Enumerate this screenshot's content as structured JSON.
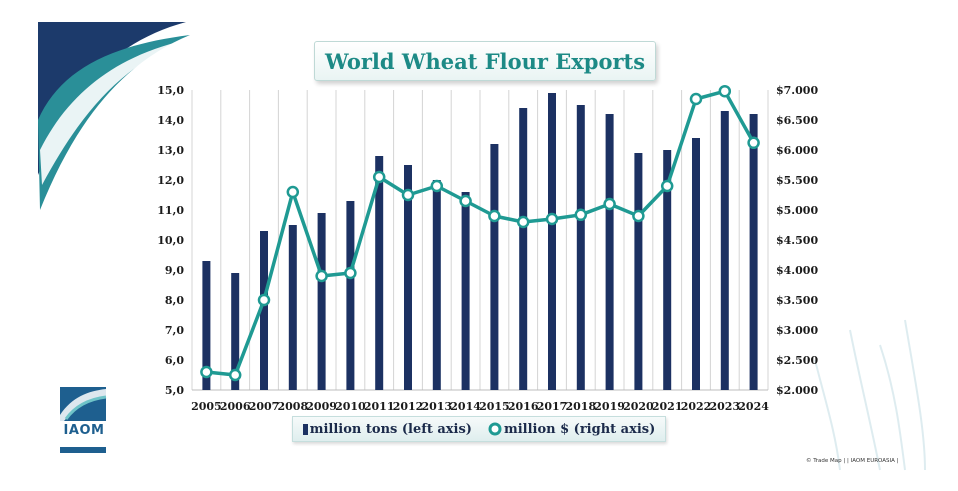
{
  "colors": {
    "bar": "#1c3162",
    "line": "#1f9a93",
    "marker_fill": "#ffffff",
    "accent_dark": "#1c3a6b",
    "accent_teal": "#2a8f98"
  },
  "branding": {
    "logo_text": "IAOM",
    "credit": "© Trade Map | | IAOM EUROASIA |"
  },
  "chart_data": {
    "type": "bar",
    "title": "World Wheat Flour Exports",
    "categories": [
      "2005",
      "2006",
      "2007",
      "2008",
      "2009",
      "2010",
      "2011",
      "2012",
      "2013",
      "2014",
      "2015",
      "2016",
      "2017",
      "2018",
      "2019",
      "2020",
      "2021",
      "2022",
      "2023",
      "2024"
    ],
    "series": [
      {
        "name": "million tons (left axis)",
        "type": "bar",
        "axis": "left",
        "values": [
          9.3,
          8.9,
          10.3,
          10.5,
          10.9,
          11.3,
          12.8,
          12.5,
          12.0,
          11.6,
          13.2,
          14.4,
          14.9,
          14.5,
          14.2,
          12.9,
          13.0,
          13.4,
          14.3,
          14.2
        ]
      },
      {
        "name": "million $ (right axis)",
        "type": "line",
        "axis": "right",
        "values": [
          2300,
          2250,
          3500,
          5300,
          3900,
          3950,
          5550,
          5250,
          5400,
          5150,
          4900,
          4800,
          4850,
          4920,
          5100,
          4900,
          5400,
          6850,
          6980,
          6120
        ]
      }
    ],
    "y_left": {
      "range": [
        5,
        15
      ],
      "ticks": [
        "5,0",
        "6,0",
        "7,0",
        "8,0",
        "9,0",
        "10,0",
        "11,0",
        "12,0",
        "13,0",
        "14,0",
        "15,0"
      ]
    },
    "y_right": {
      "range": [
        2000,
        7000
      ],
      "ticks": [
        "$2.000",
        "$2.500",
        "$3.000",
        "$3.500",
        "$4.000",
        "$4.500",
        "$5.000",
        "$5.500",
        "$6.000",
        "$6.500",
        "$7.000"
      ]
    },
    "grid": true,
    "legend": "bottom-center"
  }
}
